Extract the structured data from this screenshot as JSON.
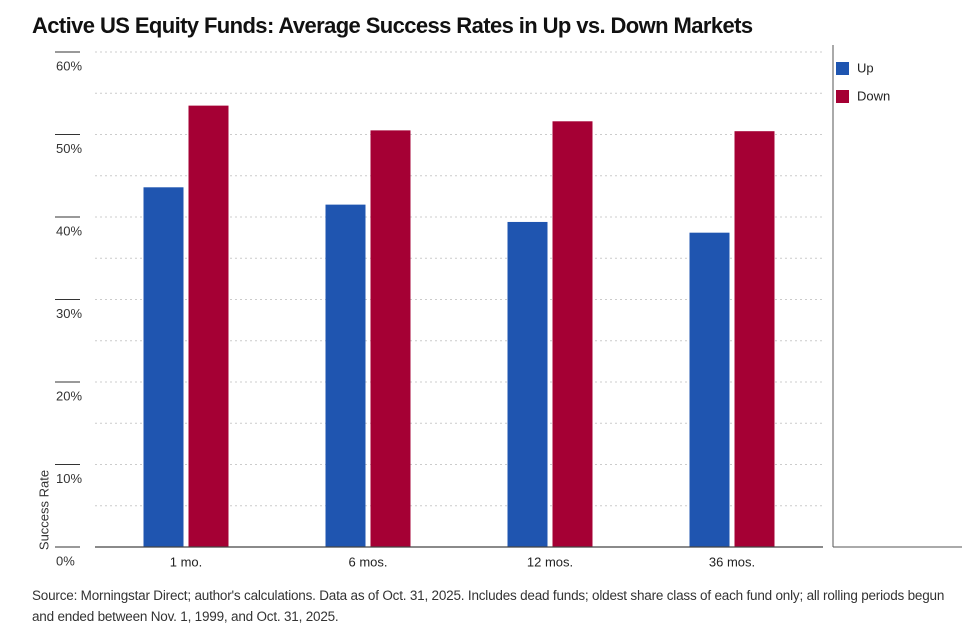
{
  "chart_data": {
    "type": "bar",
    "title": "Active US Equity Funds: Average Success Rates in Up vs. Down Markets",
    "y_label": "Success Rate",
    "categories": [
      "1 mo.",
      "6 mos.",
      "12 mos.",
      "36 mos."
    ],
    "series": [
      {
        "name": "Up",
        "color": "#1f55b0",
        "values": [
          43.6,
          41.5,
          39.4,
          38.1
        ]
      },
      {
        "name": "Down",
        "color": "#a50034",
        "values": [
          53.5,
          50.5,
          51.6,
          50.4
        ]
      }
    ],
    "ylim": [
      0,
      60
    ],
    "yticks": [
      {
        "value": 0,
        "label": "0%"
      },
      {
        "value": 10,
        "label": "10%"
      },
      {
        "value": 20,
        "label": "20%"
      },
      {
        "value": 30,
        "label": "30%"
      },
      {
        "value": 40,
        "label": "40%"
      },
      {
        "value": 50,
        "label": "50%"
      },
      {
        "value": 60,
        "label": "60%"
      }
    ],
    "grid": true,
    "legend": "top-right",
    "source": "Source: Morningstar Direct; author's calculations. Data as of Oct. 31, 2025. Includes dead funds; oldest share class of each fund only; all rolling periods begun and ended between Nov. 1, 1999, and Oct. 31, 2025."
  }
}
